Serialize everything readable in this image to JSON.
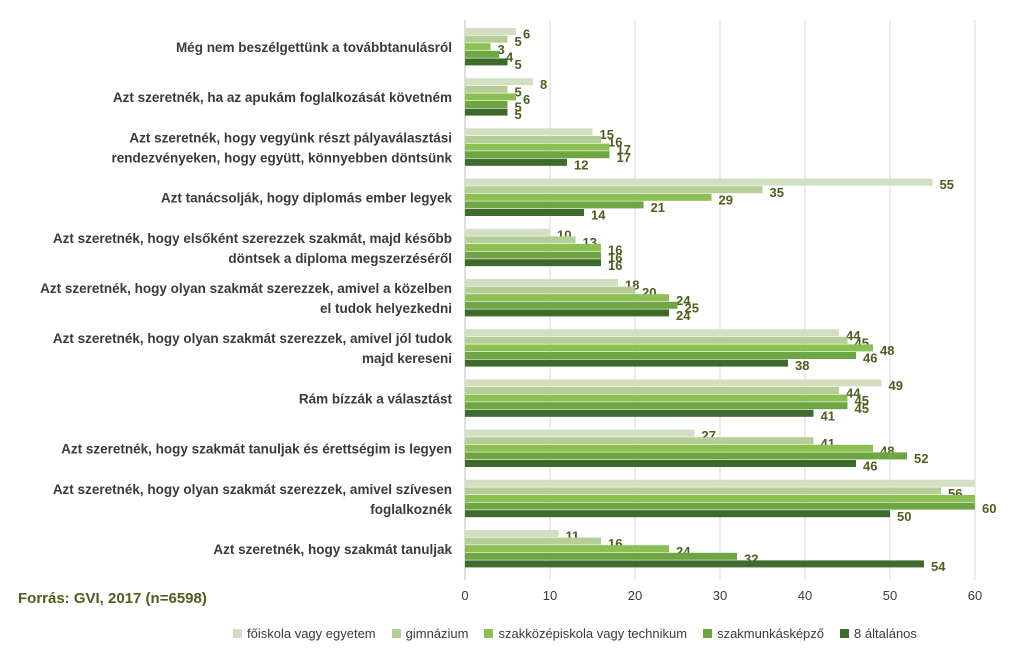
{
  "source": "Forrás: GVI, 2017 (n=6598)",
  "colors": [
    "#d3dfc2",
    "#b4ce95",
    "#8cc052",
    "#6fa542",
    "#3e6b2b"
  ],
  "chart_data": {
    "type": "bar",
    "orientation": "horizontal",
    "xlim": [
      0,
      60
    ],
    "xticks": [
      0,
      10,
      20,
      30,
      40,
      50,
      60
    ],
    "grid": true,
    "legend_position": "bottom",
    "categories": [
      [
        "Még nem beszélgettünk a továbbtanulásról"
      ],
      [
        "Azt szeretnék, ha az apukám foglalkozását követném"
      ],
      [
        "Azt szeretnék, hogy vegyünk részt pályaválasztási",
        "rendezvényeken, hogy együtt, könnyebben döntsünk"
      ],
      [
        "Azt tanácsolják, hogy diplomás ember legyek"
      ],
      [
        "Azt szeretnék, hogy elsőként szerezzek szakmát, majd később",
        "döntsek a diploma megszerzéséről"
      ],
      [
        "Azt szeretnék, hogy olyan szakmát szerezzek, amivel a közelben",
        "el tudok helyezkedni"
      ],
      [
        "Azt szeretnék, hogy olyan szakmát szerezzek, amivel jól tudok",
        "majd kereseni"
      ],
      [
        "Rám bízzák a választást"
      ],
      [
        "Azt szeretnék, hogy szakmát tanuljak és érettségim is legyen"
      ],
      [
        "Azt szeretnék, hogy olyan szakmát szerezzek, amivel szívesen",
        "foglalkoznék"
      ],
      [
        "Azt szeretnék, hogy szakmát tanuljak"
      ]
    ],
    "series": [
      {
        "name": "főiskola vagy egyetem",
        "values": [
          6,
          8,
          15,
          55,
          10,
          18,
          44,
          49,
          27,
          60,
          11
        ]
      },
      {
        "name": "gimnázium",
        "values": [
          5,
          5,
          16,
          35,
          13,
          20,
          45,
          44,
          41,
          56,
          16
        ]
      },
      {
        "name": "szakközépiskola vagy technikum",
        "values": [
          3,
          6,
          17,
          29,
          16,
          24,
          48,
          45,
          48,
          60,
          24
        ]
      },
      {
        "name": "szakmunkásképző",
        "values": [
          4,
          5,
          17,
          21,
          16,
          25,
          46,
          45,
          52,
          60,
          32
        ]
      },
      {
        "name": "8 általános",
        "values": [
          5,
          5,
          12,
          14,
          16,
          24,
          38,
          41,
          46,
          50,
          54
        ]
      }
    ],
    "data_labels": [
      [
        6,
        8,
        15,
        55,
        10,
        18,
        44,
        49,
        27,
        null,
        11
      ],
      [
        5,
        5,
        16,
        35,
        13,
        20,
        45,
        44,
        41,
        56,
        16
      ],
      [
        3,
        6,
        17,
        29,
        16,
        24,
        48,
        45,
        48,
        null,
        24
      ],
      [
        4,
        5,
        17,
        21,
        16,
        25,
        46,
        45,
        52,
        60,
        32
      ],
      [
        5,
        5,
        12,
        14,
        16,
        24,
        38,
        41,
        46,
        50,
        54
      ]
    ]
  }
}
